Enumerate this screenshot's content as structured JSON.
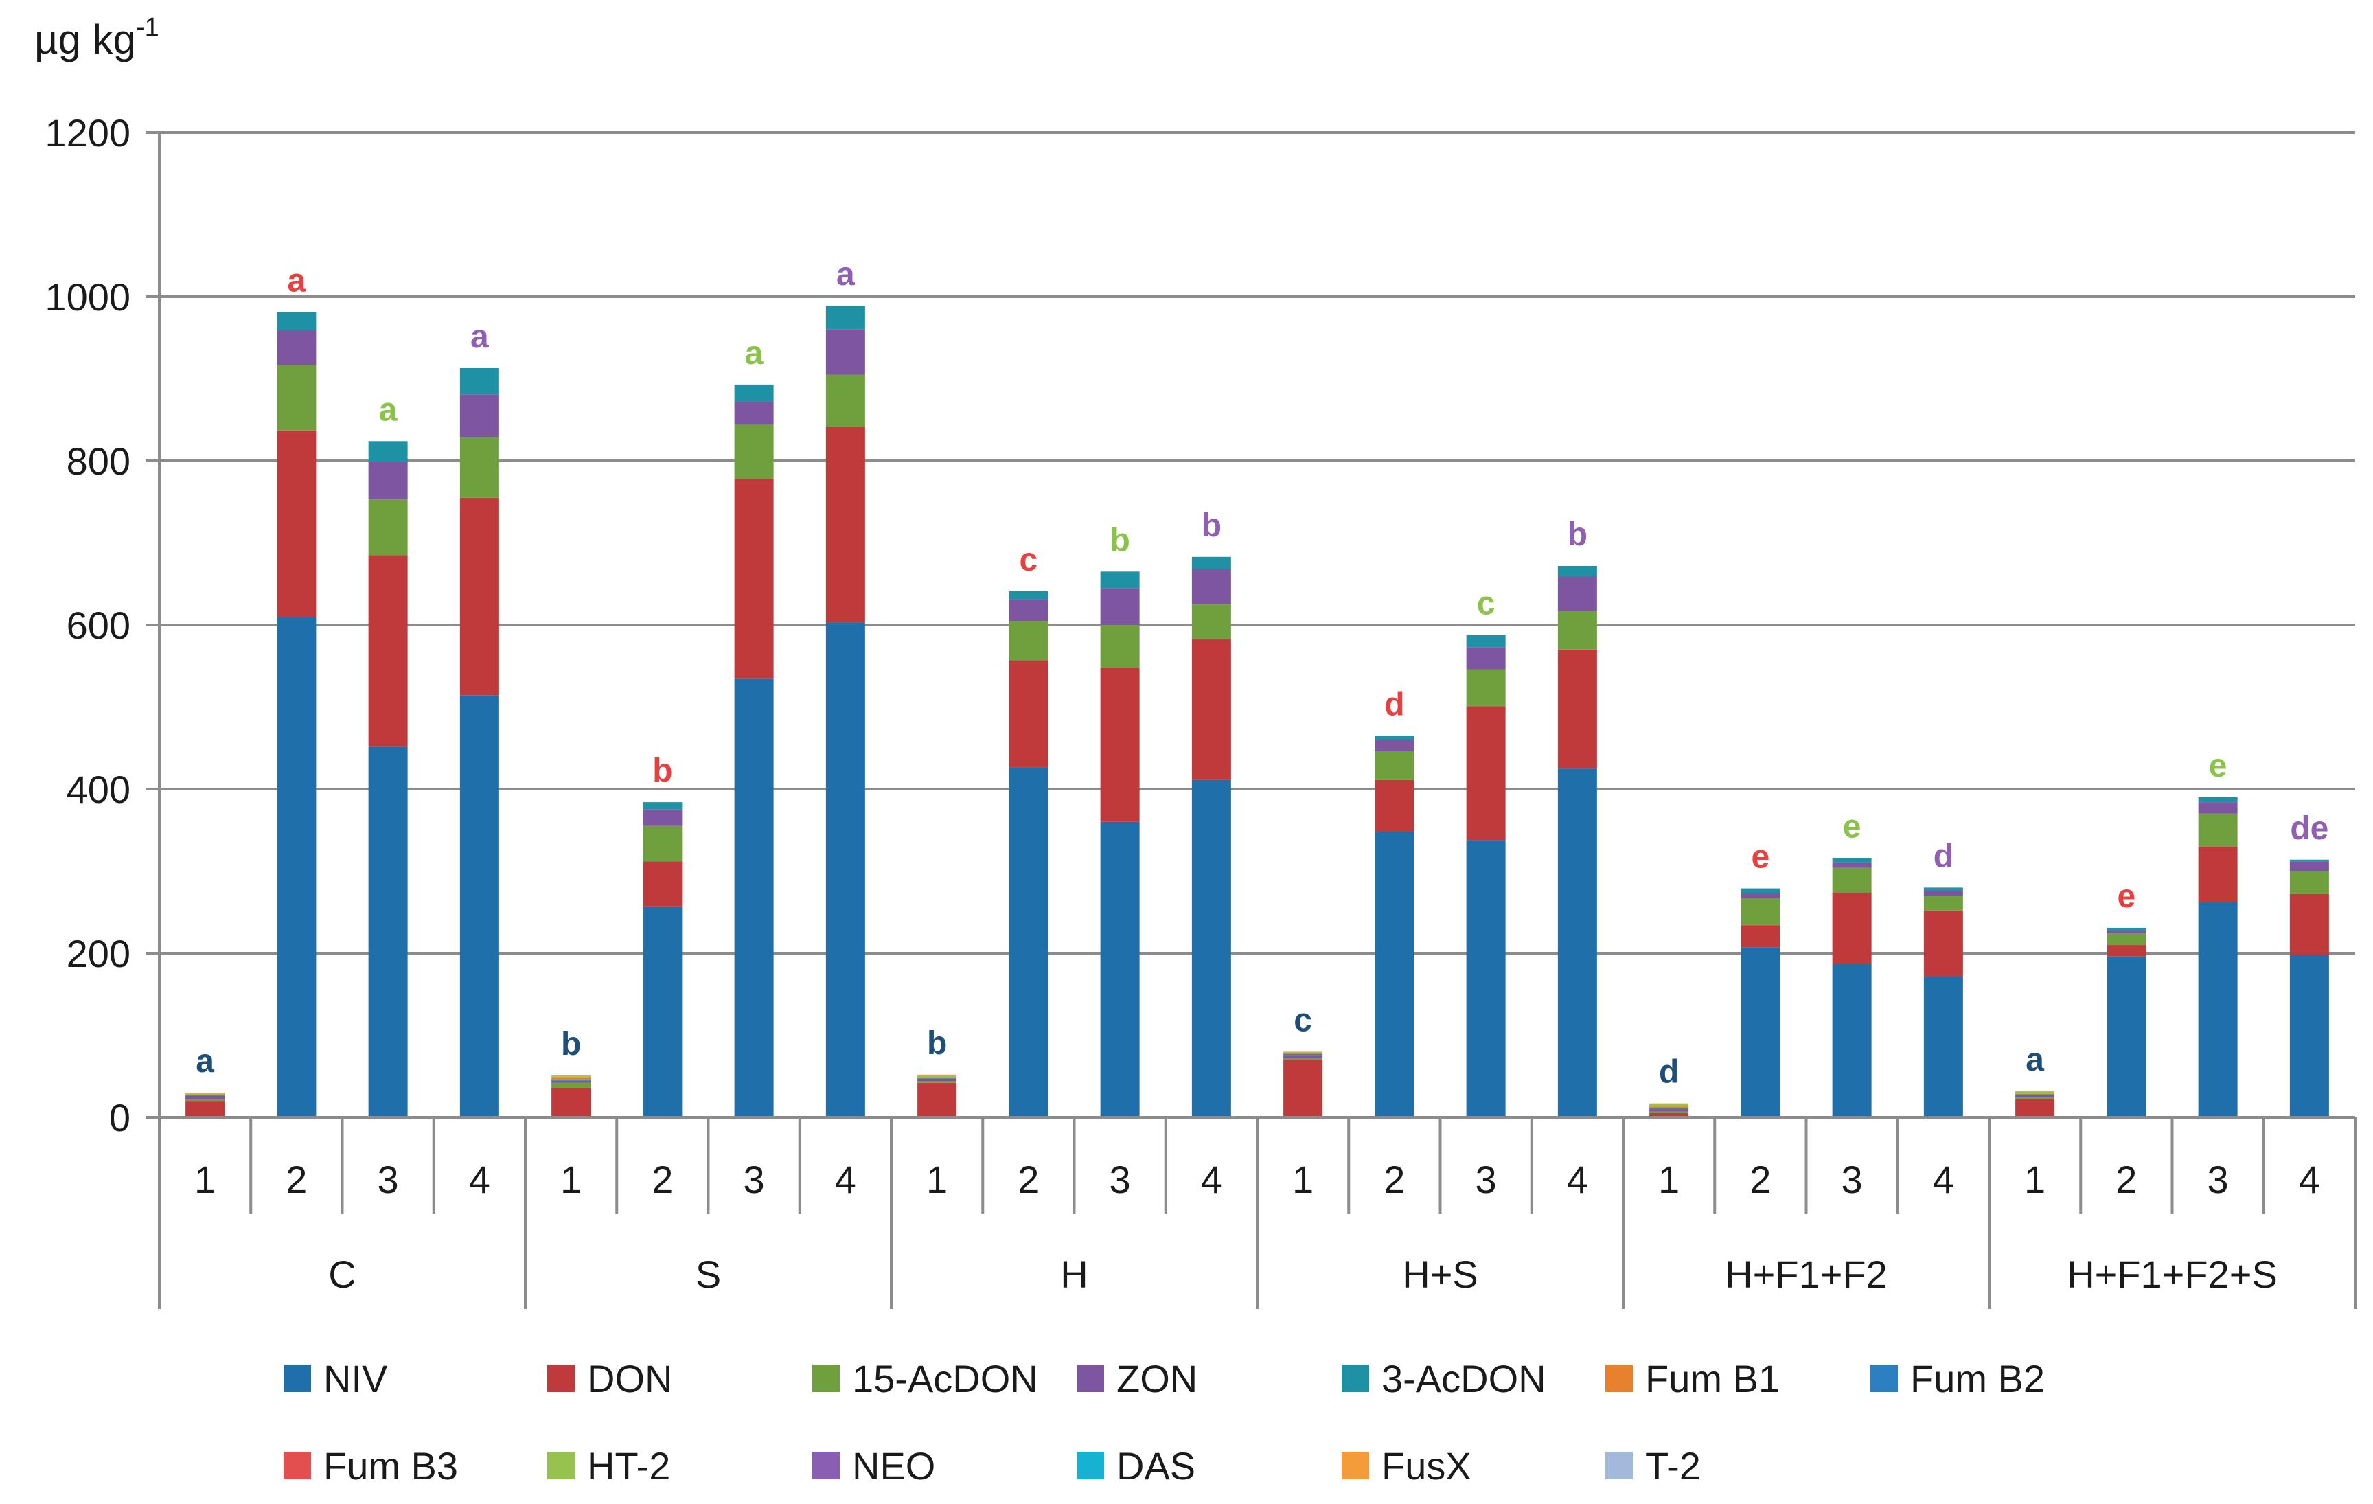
{
  "chart_data": {
    "type": "bar",
    "stacked": true,
    "unit_label": "µg kg",
    "unit_exponent": "-1",
    "ylim": [
      0,
      1200
    ],
    "y_ticks": [
      0,
      200,
      400,
      600,
      800,
      1000,
      1200
    ],
    "groups": [
      "C",
      "S",
      "H",
      "H+S",
      "H+F1+F2",
      "H+F1+F2+S"
    ],
    "subcategories": [
      "1",
      "2",
      "3",
      "4"
    ],
    "series": [
      {
        "name": "NIV",
        "color": "#1f6fab",
        "values": [
          0,
          610,
          452,
          514,
          0,
          257,
          535,
          603,
          0,
          426,
          360,
          411,
          0,
          348,
          338,
          425,
          0,
          207,
          187,
          172,
          0,
          196,
          262,
          198
        ]
      },
      {
        "name": "DON",
        "color": "#c0393b",
        "values": [
          20,
          227,
          233,
          241,
          36,
          55,
          243,
          238,
          42,
          131,
          188,
          172,
          70,
          63,
          163,
          145,
          5,
          27,
          87,
          80,
          22,
          14,
          68,
          74
        ]
      },
      {
        "name": "15-AcDON",
        "color": "#70a03d",
        "values": [
          2,
          80,
          68,
          74,
          6,
          43,
          66,
          64,
          2,
          48,
          52,
          42,
          2,
          35,
          45,
          47,
          2,
          33,
          30,
          18,
          2,
          14,
          40,
          28
        ]
      },
      {
        "name": "ZON",
        "color": "#7d55a0",
        "values": [
          4,
          42,
          46,
          52,
          3,
          20,
          28,
          55,
          3,
          26,
          45,
          43,
          4,
          14,
          27,
          42,
          3,
          6,
          7,
          6,
          3,
          4,
          14,
          12
        ]
      },
      {
        "name": "3-AcDON",
        "color": "#1f91a5",
        "values": [
          1,
          22,
          25,
          32,
          1,
          9,
          21,
          29,
          1,
          10,
          20,
          15,
          1,
          5,
          15,
          13,
          1,
          6,
          5,
          4,
          1,
          3,
          6,
          2
        ]
      },
      {
        "name": "Fum B1",
        "color": "#e8812e",
        "values": [
          1,
          0,
          0,
          0,
          2,
          0,
          0,
          0,
          1,
          0,
          0,
          0,
          1,
          0,
          0,
          0,
          2,
          0,
          0,
          0,
          1,
          0,
          0,
          0
        ]
      },
      {
        "name": "Fum B2",
        "color": "#2c7fc0",
        "values": [
          0,
          0,
          0,
          0,
          0,
          0,
          0,
          0,
          0,
          0,
          0,
          0,
          0,
          0,
          0,
          0,
          0,
          0,
          0,
          0,
          0,
          0,
          0,
          0
        ]
      },
      {
        "name": "Fum B3",
        "color": "#e34e4e",
        "values": [
          0,
          0,
          0,
          0,
          0,
          0,
          0,
          0,
          0,
          0,
          0,
          0,
          0,
          0,
          0,
          0,
          0,
          0,
          0,
          0,
          0,
          0,
          0,
          0
        ]
      },
      {
        "name": "HT-2",
        "color": "#96c24d",
        "values": [
          1,
          0,
          0,
          0,
          2,
          0,
          0,
          0,
          2,
          0,
          0,
          0,
          1,
          0,
          0,
          0,
          3,
          0,
          0,
          0,
          2,
          0,
          0,
          0
        ]
      },
      {
        "name": "NEO",
        "color": "#8a5fb3",
        "values": [
          0,
          0,
          0,
          0,
          0,
          0,
          0,
          0,
          0,
          0,
          0,
          0,
          0,
          0,
          0,
          0,
          0,
          0,
          0,
          0,
          0,
          0,
          0,
          0
        ]
      },
      {
        "name": "DAS",
        "color": "#16b2d2",
        "values": [
          0,
          0,
          0,
          0,
          0,
          0,
          0,
          0,
          0,
          0,
          0,
          0,
          0,
          0,
          0,
          0,
          0,
          0,
          0,
          0,
          0,
          0,
          0,
          0
        ]
      },
      {
        "name": "FusX",
        "color": "#f49b3a",
        "values": [
          1,
          0,
          0,
          0,
          1,
          0,
          0,
          0,
          1,
          0,
          0,
          0,
          1,
          0,
          0,
          0,
          1,
          0,
          0,
          0,
          1,
          0,
          0,
          0
        ]
      },
      {
        "name": "T-2",
        "color": "#a3b9dc",
        "values": [
          0,
          0,
          0,
          0,
          0,
          0,
          0,
          0,
          0,
          0,
          0,
          0,
          0,
          0,
          0,
          0,
          0,
          0,
          0,
          0,
          0,
          0,
          0,
          0
        ]
      }
    ],
    "significance_letters": [
      {
        "text": "a",
        "color": "#1f4e79"
      },
      {
        "text": "a",
        "color": "#e84040"
      },
      {
        "text": "a",
        "color": "#8bc34a"
      },
      {
        "text": "a",
        "color": "#8e5fb3"
      },
      {
        "text": "b",
        "color": "#1f4e79"
      },
      {
        "text": "b",
        "color": "#e84040"
      },
      {
        "text": "a",
        "color": "#8bc34a"
      },
      {
        "text": "a",
        "color": "#8e5fb3"
      },
      {
        "text": "b",
        "color": "#1f4e79"
      },
      {
        "text": "c",
        "color": "#e84040"
      },
      {
        "text": "b",
        "color": "#8bc34a"
      },
      {
        "text": "b",
        "color": "#8e5fb3"
      },
      {
        "text": "c",
        "color": "#1f4e79"
      },
      {
        "text": "d",
        "color": "#e84040"
      },
      {
        "text": "c",
        "color": "#8bc34a"
      },
      {
        "text": "b",
        "color": "#8e5fb3"
      },
      {
        "text": "d",
        "color": "#1f4e79"
      },
      {
        "text": "e",
        "color": "#e84040"
      },
      {
        "text": "e",
        "color": "#8bc34a"
      },
      {
        "text": "d",
        "color": "#8e5fb3"
      },
      {
        "text": "a",
        "color": "#1f4e79"
      },
      {
        "text": "e",
        "color": "#e84040"
      },
      {
        "text": "e",
        "color": "#8bc34a"
      },
      {
        "text": "de",
        "color": "#8e5fb3"
      }
    ],
    "grid": true,
    "legend_position": "bottom"
  }
}
